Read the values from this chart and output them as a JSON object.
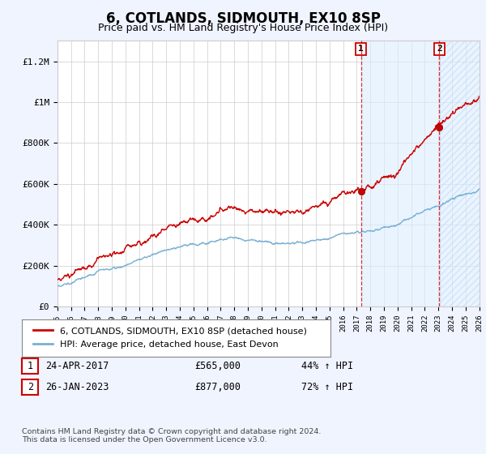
{
  "title": "6, COTLANDS, SIDMOUTH, EX10 8SP",
  "subtitle": "Price paid vs. HM Land Registry's House Price Index (HPI)",
  "ylim": [
    0,
    1300000
  ],
  "yticks": [
    0,
    200000,
    400000,
    600000,
    800000,
    1000000,
    1200000
  ],
  "ytick_labels": [
    "£0",
    "£200K",
    "£400K",
    "£600K",
    "£800K",
    "£1M",
    "£1.2M"
  ],
  "x_start_year": 1995,
  "x_end_year": 2026,
  "hpi_color": "#7ab0d4",
  "price_color": "#cc0000",
  "shade_color": "#ddeeff",
  "sale1_year": 2017.31,
  "sale1_price": 565000,
  "sale2_year": 2023.07,
  "sale2_price": 877000,
  "annotation1_date": "24-APR-2017",
  "annotation1_price": "£565,000",
  "annotation1_pct": "44% ↑ HPI",
  "annotation2_date": "26-JAN-2023",
  "annotation2_price": "£877,000",
  "annotation2_pct": "72% ↑ HPI",
  "legend_line1": "6, COTLANDS, SIDMOUTH, EX10 8SP (detached house)",
  "legend_line2": "HPI: Average price, detached house, East Devon",
  "footer": "Contains HM Land Registry data © Crown copyright and database right 2024.\nThis data is licensed under the Open Government Licence v3.0.",
  "background_color": "#f0f4ff",
  "plot_bg_color": "#ffffff",
  "grid_color": "#cccccc",
  "title_fontsize": 12,
  "subtitle_fontsize": 9,
  "tick_fontsize": 8
}
